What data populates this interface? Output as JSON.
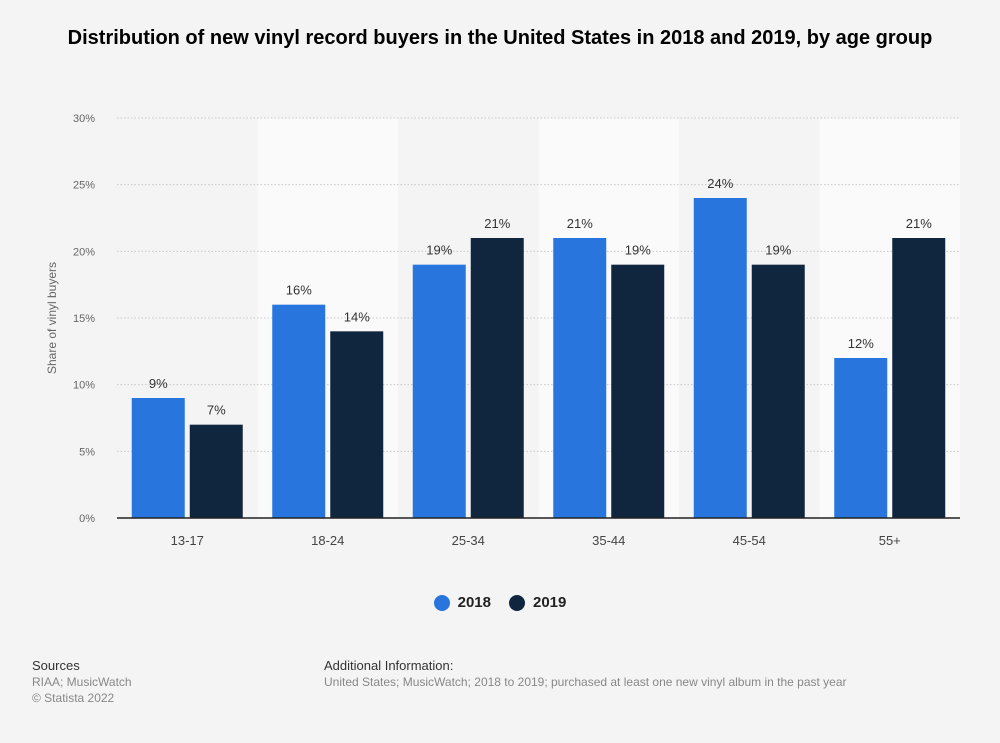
{
  "chart_data": {
    "type": "bar",
    "title": "Distribution of new vinyl record buyers in the United States in 2018 and 2019, by age group",
    "ylabel": "Share of vinyl buyers",
    "xlabel": "",
    "categories": [
      "13-17",
      "18-24",
      "25-34",
      "35-44",
      "45-54",
      "55+"
    ],
    "series": [
      {
        "name": "2018",
        "color": "#2876dd",
        "values": [
          9,
          16,
          19,
          21,
          24,
          12
        ],
        "labels": [
          "9%",
          "16%",
          "19%",
          "21%",
          "24%",
          "12%"
        ]
      },
      {
        "name": "2019",
        "color": "#10263f",
        "values": [
          7,
          14,
          21,
          19,
          19,
          21
        ],
        "labels": [
          "7%",
          "14%",
          "21%",
          "19%",
          "19%",
          "21%"
        ]
      }
    ],
    "ylim": [
      0,
      30
    ],
    "yticks": [
      0,
      5,
      10,
      15,
      20,
      25,
      30
    ],
    "ytick_labels": [
      "0%",
      "5%",
      "10%",
      "15%",
      "20%",
      "25%",
      "30%"
    ],
    "grid": true,
    "legend": "bottom-center"
  },
  "footer": {
    "sources_title": "Sources",
    "sources_line1": "RIAA; MusicWatch",
    "sources_line2": "© Statista 2022",
    "addinfo_title": "Additional Information:",
    "addinfo_text": "United States; MusicWatch; 2018 to 2019; purchased at least one new vinyl album in the past year"
  }
}
